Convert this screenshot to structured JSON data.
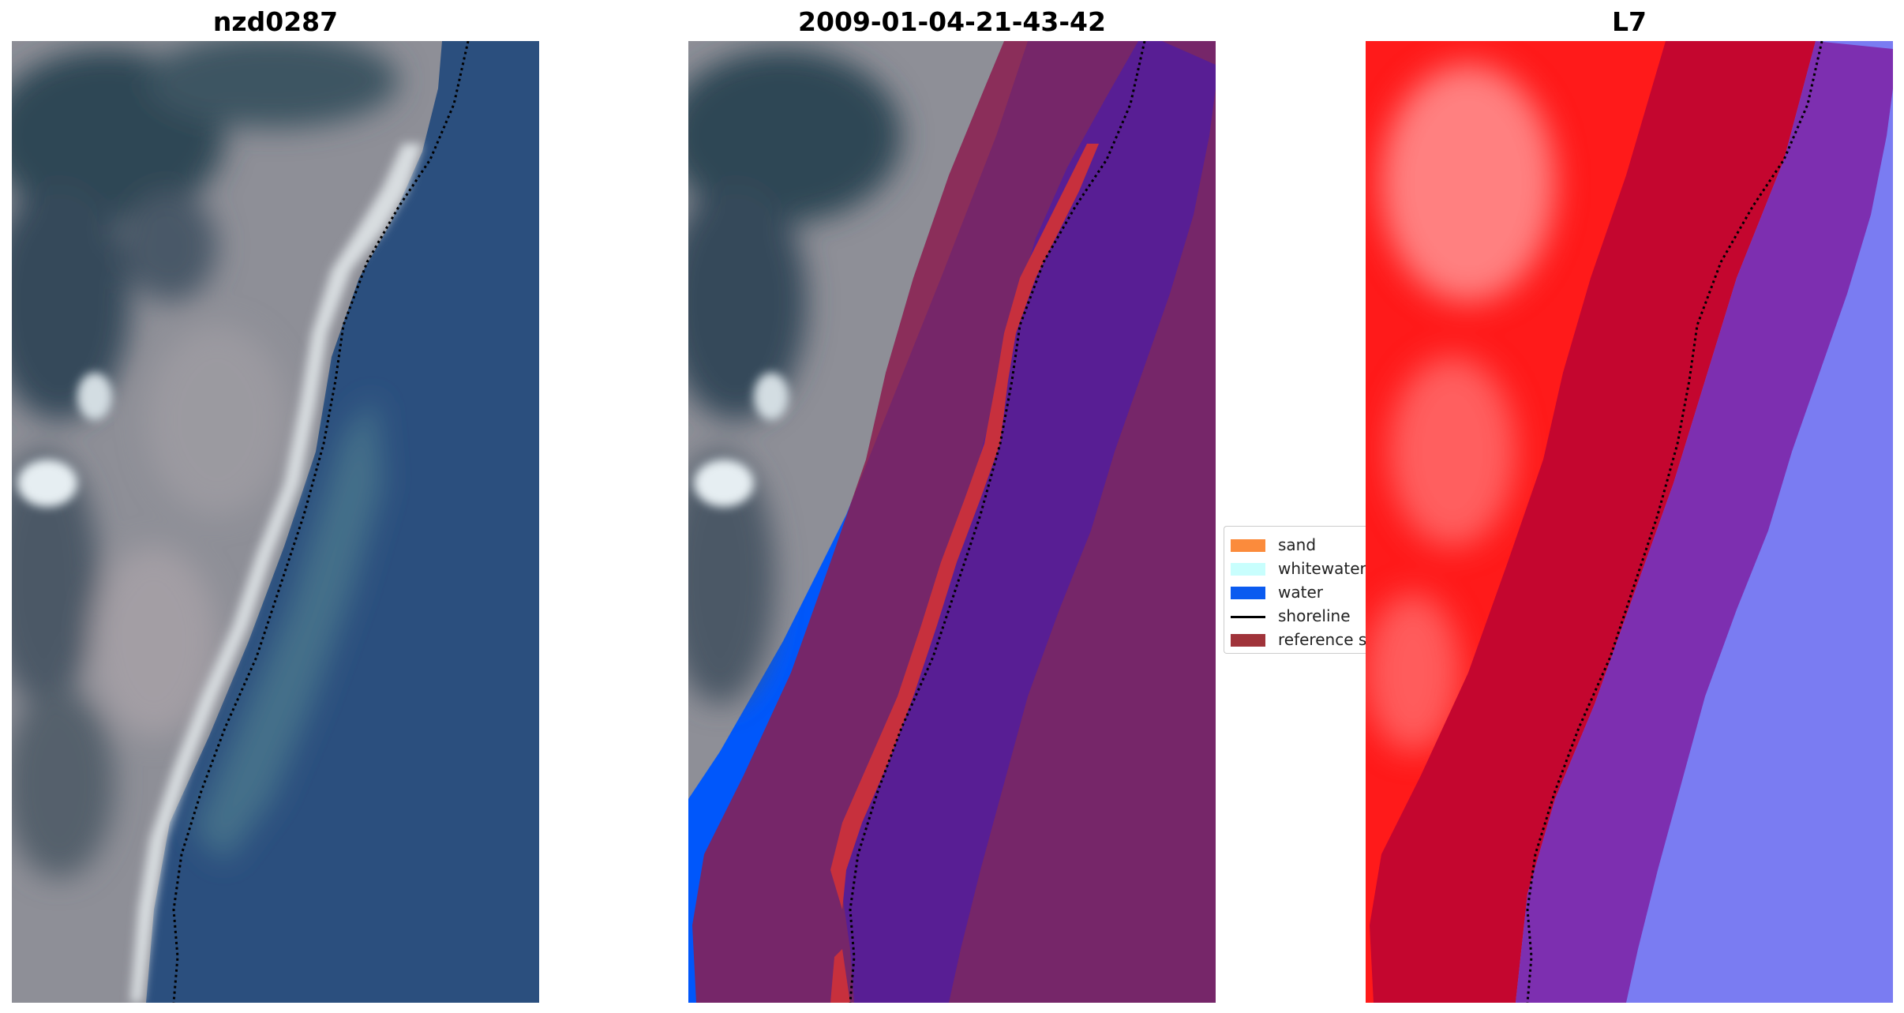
{
  "titles": {
    "left": "nzd0287",
    "middle": "2009-01-04-21-43-42",
    "right": "L7"
  },
  "legend": {
    "items": [
      {
        "label": "sand",
        "color": "#fb8b3c",
        "kind": "patch"
      },
      {
        "label": "whitewater",
        "color": "#c8fefd",
        "kind": "patch"
      },
      {
        "label": "water",
        "color": "#0b5bf0",
        "kind": "patch"
      },
      {
        "label": "shoreline",
        "color": "#000000",
        "kind": "line"
      },
      {
        "label": "reference shoreline buffer",
        "color": "#a0333a",
        "kind": "patch"
      }
    ]
  },
  "colors": {
    "water_rgb": "#2b4f7e",
    "land_rgb": "#8e8f97",
    "vegetation_rgb": "#3a4c58",
    "beach_rgb": "#d8dde0",
    "buffer_overlay": "#8b1d4f",
    "water_class": "#0057fb",
    "water_in_buffer": "#581e94",
    "sand_in_buffer": "#c7303d",
    "index_land": "#ff1a1a",
    "index_buffer": "#c4062f",
    "index_water_buffer": "#7d2fb0",
    "index_water": "#7a7cf2"
  }
}
